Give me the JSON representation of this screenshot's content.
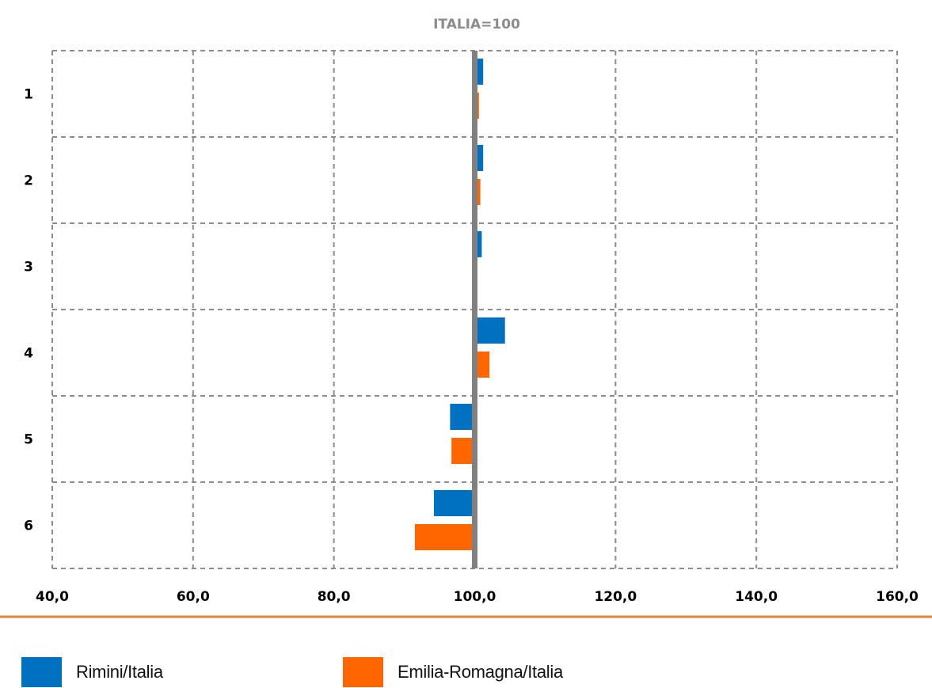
{
  "chart_data": {
    "type": "bar",
    "orientation": "horizontal",
    "title": "ITALIA=100",
    "baseline": 100,
    "xlim": [
      40,
      160
    ],
    "xticks": [
      "40,0",
      "60,0",
      "80,0",
      "100,0",
      "120,0",
      "140,0",
      "160,0"
    ],
    "xtick_values": [
      40,
      60,
      80,
      100,
      120,
      140,
      160
    ],
    "categories": [
      "1",
      "2",
      "3",
      "4",
      "5",
      "6"
    ],
    "series": [
      {
        "name": "Rimini/Italia",
        "color": "#0070c0",
        "values": [
          101.2,
          101.2,
          101.0,
          104.3,
          96.5,
          94.2
        ]
      },
      {
        "name": "Emilia-Romagna/Italia",
        "color": "#ff6600",
        "values": [
          100.6,
          100.8,
          100.3,
          102.1,
          96.7,
          91.5
        ]
      }
    ],
    "grid": true,
    "legend_position": "bottom"
  }
}
